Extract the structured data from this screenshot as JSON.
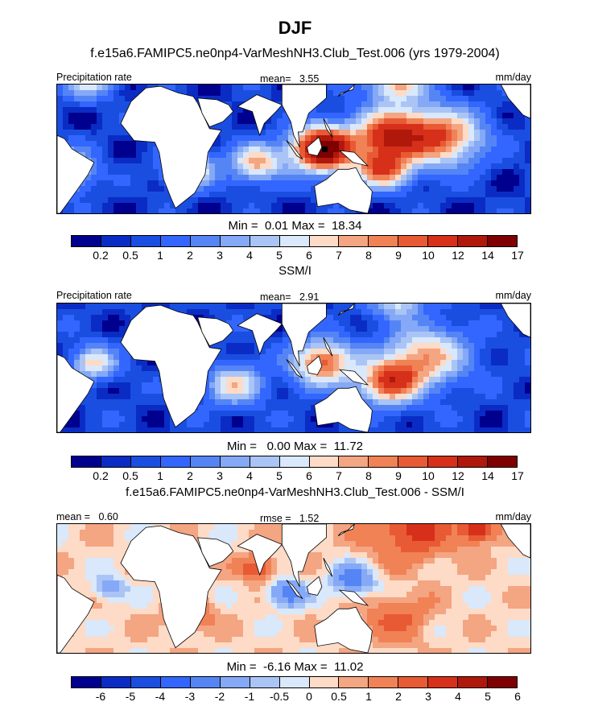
{
  "figure": {
    "season": "DJF",
    "model_title": "f.e15a6.FAMIPC5.ne0np4-VarMeshNH3.Club_Test.006 (yrs 1979-2004)",
    "obs_title": "SSM/I",
    "diff_title": "f.e15a6.FAMIPC5.ne0np4-VarMeshNH3.Club_Test.006 - SSM/I"
  },
  "chart_data": [
    {
      "type": "heatmap",
      "panel": "model",
      "left_label": "Precipitation rate",
      "center_label": "mean=",
      "center_value": "3.55",
      "units": "mm/day",
      "min_label": "Min =",
      "min_value": "0.01",
      "max_label": "Max =",
      "max_value": "18.34",
      "levels": [
        "0.2",
        "0.5",
        "1",
        "2",
        "3",
        "4",
        "5",
        "6",
        "7",
        "8",
        "9",
        "10",
        "12",
        "14",
        "17"
      ],
      "colors": [
        "#00008f",
        "#0a2cc4",
        "#1a4ee0",
        "#3366ff",
        "#5585f5",
        "#85a9f7",
        "#aac5f5",
        "#d9e8fa",
        "#fddbc7",
        "#f4a582",
        "#f08256",
        "#e85a34",
        "#d6301a",
        "#b0180c",
        "#7f0000"
      ],
      "centers": [
        {
          "lon": 120,
          "lat": 0,
          "amp": 16,
          "sig": 14
        },
        {
          "lon": 165,
          "lat": 8,
          "amp": 11,
          "sig": 16
        },
        {
          "lon": 200,
          "lat": 7,
          "amp": 9,
          "sig": 18
        },
        {
          "lon": 160,
          "lat": -12,
          "amp": 9,
          "sig": 12
        },
        {
          "lon": 30,
          "lat": -12,
          "amp": 7,
          "sig": 11
        },
        {
          "lon": 75,
          "lat": -8,
          "amp": 7,
          "sig": 12
        },
        {
          "lon": -55,
          "lat": -12,
          "amp": 8,
          "sig": 12
        },
        {
          "lon": 170,
          "lat": 40,
          "amp": 7,
          "sig": 14
        },
        {
          "lon": -40,
          "lat": 42,
          "amp": 6,
          "sig": 12
        }
      ],
      "base": 0.5
    },
    {
      "type": "heatmap",
      "panel": "obs",
      "left_label": "Precipitation rate",
      "center_label": "mean=",
      "center_value": "2.91",
      "units": "mm/day",
      "min_label": "Min =",
      "min_value": "0.00",
      "max_label": "Max =",
      "max_value": "11.72",
      "levels": [
        "0.2",
        "0.5",
        "1",
        "2",
        "3",
        "4",
        "5",
        "6",
        "7",
        "8",
        "9",
        "10",
        "12",
        "14",
        "17"
      ],
      "colors": [
        "#00008f",
        "#0a2cc4",
        "#1a4ee0",
        "#3366ff",
        "#5585f5",
        "#85a9f7",
        "#aac5f5",
        "#d9e8fa",
        "#fddbc7",
        "#f4a582",
        "#f08256",
        "#e85a34",
        "#d6301a",
        "#b0180c",
        "#7f0000"
      ],
      "centers": [
        {
          "lon": 120,
          "lat": 3,
          "amp": 9,
          "sig": 14
        },
        {
          "lon": 165,
          "lat": -8,
          "amp": 10,
          "sig": 14
        },
        {
          "lon": 190,
          "lat": 7,
          "amp": 7,
          "sig": 18
        },
        {
          "lon": 60,
          "lat": -10,
          "amp": 6,
          "sig": 12
        },
        {
          "lon": -35,
          "lat": 3,
          "amp": 6,
          "sig": 10
        },
        {
          "lon": 170,
          "lat": 40,
          "amp": 5,
          "sig": 12
        }
      ],
      "base": 0.6
    },
    {
      "type": "heatmap",
      "panel": "difference",
      "left_label": "mean =",
      "left_value": "0.60",
      "center_label": "rmse =",
      "center_value": "1.52",
      "units": "mm/day",
      "min_label": "Min =",
      "min_value": "-6.16",
      "max_label": "Max =",
      "max_value": "11.02",
      "levels": [
        "-6",
        "-5",
        "-4",
        "-3",
        "-2",
        "-1",
        "-0.5",
        "0",
        "0.5",
        "1",
        "2",
        "3",
        "4",
        "5",
        "6"
      ],
      "colors": [
        "#00008f",
        "#0a2cc4",
        "#1a4ee0",
        "#3366ff",
        "#5585f5",
        "#85a9f7",
        "#aac5f5",
        "#d9e8fa",
        "#fddbc7",
        "#f4a582",
        "#f08256",
        "#e85a34",
        "#d6301a",
        "#b0180c",
        "#7f0000"
      ],
      "centers": [
        {
          "lon": 180,
          "lat": 35,
          "amp": 3,
          "sig": 20
        },
        {
          "lon": 225,
          "lat": 35,
          "amp": 4,
          "sig": 8
        },
        {
          "lon": 75,
          "lat": 12,
          "amp": 3,
          "sig": 8
        },
        {
          "lon": 140,
          "lat": 5,
          "amp": -3,
          "sig": 10
        },
        {
          "lon": 95,
          "lat": -3,
          "amp": -3,
          "sig": 9
        },
        {
          "lon": -25,
          "lat": 0,
          "amp": -2,
          "sig": 8
        },
        {
          "lon": 30,
          "lat": -15,
          "amp": 2,
          "sig": 10
        },
        {
          "lon": 170,
          "lat": -18,
          "amp": 2,
          "sig": 14
        }
      ],
      "base": 0.3
    }
  ]
}
